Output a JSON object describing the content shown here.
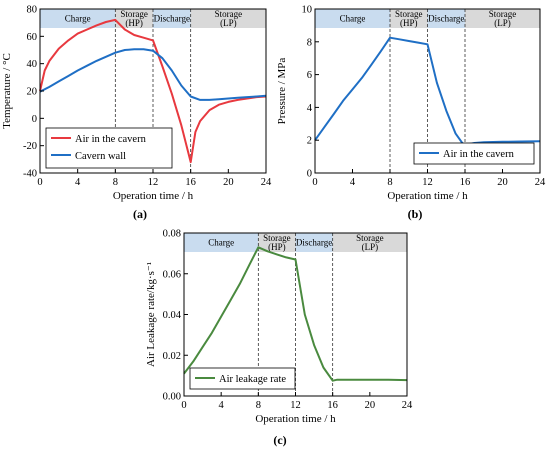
{
  "figure": {
    "panel_labels": [
      "(a)",
      "(b)",
      "(c)"
    ]
  },
  "chart_data": [
    {
      "id": "a",
      "type": "line",
      "xlabel": "Operation time / h",
      "ylabel": "Temperature / °C",
      "xlim": [
        0,
        24
      ],
      "ylim": [
        -40,
        80
      ],
      "xticks": [
        0,
        4,
        8,
        12,
        16,
        20,
        24
      ],
      "yticks": [
        -40,
        -20,
        0,
        20,
        40,
        60,
        80
      ],
      "phases": [
        {
          "label": "Charge",
          "x0": 0,
          "x1": 8,
          "color": "#c9dcef"
        },
        {
          "label": "Storage\n(HP)",
          "x0": 8,
          "x1": 12,
          "color": "#d9d9d9"
        },
        {
          "label": "Discharge",
          "x0": 12,
          "x1": 16,
          "color": "#c9dcef"
        },
        {
          "label": "Storage\n(LP)",
          "x0": 16,
          "x1": 24,
          "color": "#d9d9d9"
        }
      ],
      "grid": false,
      "legend": "bottom-left",
      "series": [
        {
          "name": "Air in the cavern",
          "color": "#e8393f",
          "x": [
            0,
            0.5,
            1,
            2,
            3,
            4,
            5,
            6,
            7,
            8,
            9,
            10,
            11,
            12,
            13,
            14,
            15,
            16,
            16.5,
            17,
            18,
            19,
            20,
            21,
            22,
            23,
            24
          ],
          "y": [
            20,
            35,
            42,
            51,
            57,
            62,
            65,
            68,
            70.5,
            72,
            65,
            61,
            59,
            57,
            38,
            18,
            -5,
            -32,
            -10,
            -2,
            6,
            10,
            12,
            13.5,
            14.5,
            15.5,
            16
          ]
        },
        {
          "name": "Cavern wall",
          "color": "#1f6fc5",
          "x": [
            0,
            1,
            2,
            3,
            4,
            5,
            6,
            7,
            8,
            9,
            10,
            11,
            12,
            13,
            14,
            15,
            16,
            17,
            18,
            19,
            20,
            21,
            22,
            23,
            24
          ],
          "y": [
            19.5,
            23,
            27,
            31,
            35,
            38.5,
            42,
            45,
            48,
            50,
            50.5,
            50.5,
            49.5,
            44,
            35,
            24,
            16,
            13.5,
            13.5,
            14,
            14.5,
            15,
            15.5,
            16,
            16.5
          ]
        }
      ]
    },
    {
      "id": "b",
      "type": "line",
      "xlabel": "Operation time / h",
      "ylabel": "Pressure / MPa",
      "xlim": [
        0,
        24
      ],
      "ylim": [
        0,
        10
      ],
      "xticks": [
        0,
        4,
        8,
        12,
        16,
        20,
        24
      ],
      "yticks": [
        0,
        2,
        4,
        6,
        8,
        10
      ],
      "phases": [
        {
          "label": "Charge",
          "x0": 0,
          "x1": 8,
          "color": "#c9dcef"
        },
        {
          "label": "Storage\n(HP)",
          "x0": 8,
          "x1": 12,
          "color": "#d9d9d9"
        },
        {
          "label": "Discharge",
          "x0": 12,
          "x1": 16,
          "color": "#c9dcef"
        },
        {
          "label": "Storage\n(LP)",
          "x0": 16,
          "x1": 24,
          "color": "#d9d9d9"
        }
      ],
      "grid": false,
      "legend": "bottom-right",
      "series": [
        {
          "name": "Air in the cavern",
          "color": "#1f6fc5",
          "x": [
            0,
            1,
            2,
            3,
            4,
            5,
            6,
            7,
            8,
            9,
            10,
            11,
            12,
            13,
            14,
            15,
            16,
            16.5,
            17,
            18,
            20,
            22,
            24
          ],
          "y": [
            2.0,
            2.8,
            3.6,
            4.4,
            5.1,
            5.8,
            6.6,
            7.4,
            8.25,
            8.15,
            8.05,
            7.95,
            7.85,
            5.5,
            3.8,
            2.4,
            1.6,
            1.78,
            1.83,
            1.87,
            1.9,
            1.92,
            1.93
          ]
        }
      ]
    },
    {
      "id": "c",
      "type": "line",
      "xlabel": "Operation time / h",
      "ylabel": "Air Leakage rate/kg·s⁻¹",
      "xlim": [
        0,
        24
      ],
      "ylim": [
        0,
        0.08
      ],
      "xticks": [
        0,
        4,
        8,
        12,
        16,
        20,
        24
      ],
      "yticks": [
        0.0,
        0.02,
        0.04,
        0.06,
        0.08
      ],
      "ytick_labels": [
        "0.00",
        "0.02",
        "0.04",
        "0.06",
        "0.08"
      ],
      "phases": [
        {
          "label": "Charge",
          "x0": 0,
          "x1": 8,
          "color": "#c9dcef"
        },
        {
          "label": "Storage\n(HP)",
          "x0": 8,
          "x1": 12,
          "color": "#d9d9d9"
        },
        {
          "label": "Discharge",
          "x0": 12,
          "x1": 16,
          "color": "#c9dcef"
        },
        {
          "label": "Storage\n(LP)",
          "x0": 16,
          "x1": 24,
          "color": "#d9d9d9"
        }
      ],
      "grid": false,
      "legend": "bottom-left",
      "series": [
        {
          "name": "Air leakage rate",
          "color": "#4a8a3f",
          "x": [
            0,
            1,
            2,
            3,
            4,
            5,
            6,
            7,
            8,
            9,
            10,
            11,
            12,
            13,
            14,
            15,
            16,
            16.5,
            18,
            20,
            22,
            24
          ],
          "y": [
            0.011,
            0.017,
            0.024,
            0.031,
            0.039,
            0.047,
            0.055,
            0.064,
            0.073,
            0.071,
            0.0695,
            0.068,
            0.067,
            0.04,
            0.025,
            0.014,
            0.0075,
            0.008,
            0.008,
            0.008,
            0.008,
            0.0078
          ]
        }
      ]
    }
  ]
}
